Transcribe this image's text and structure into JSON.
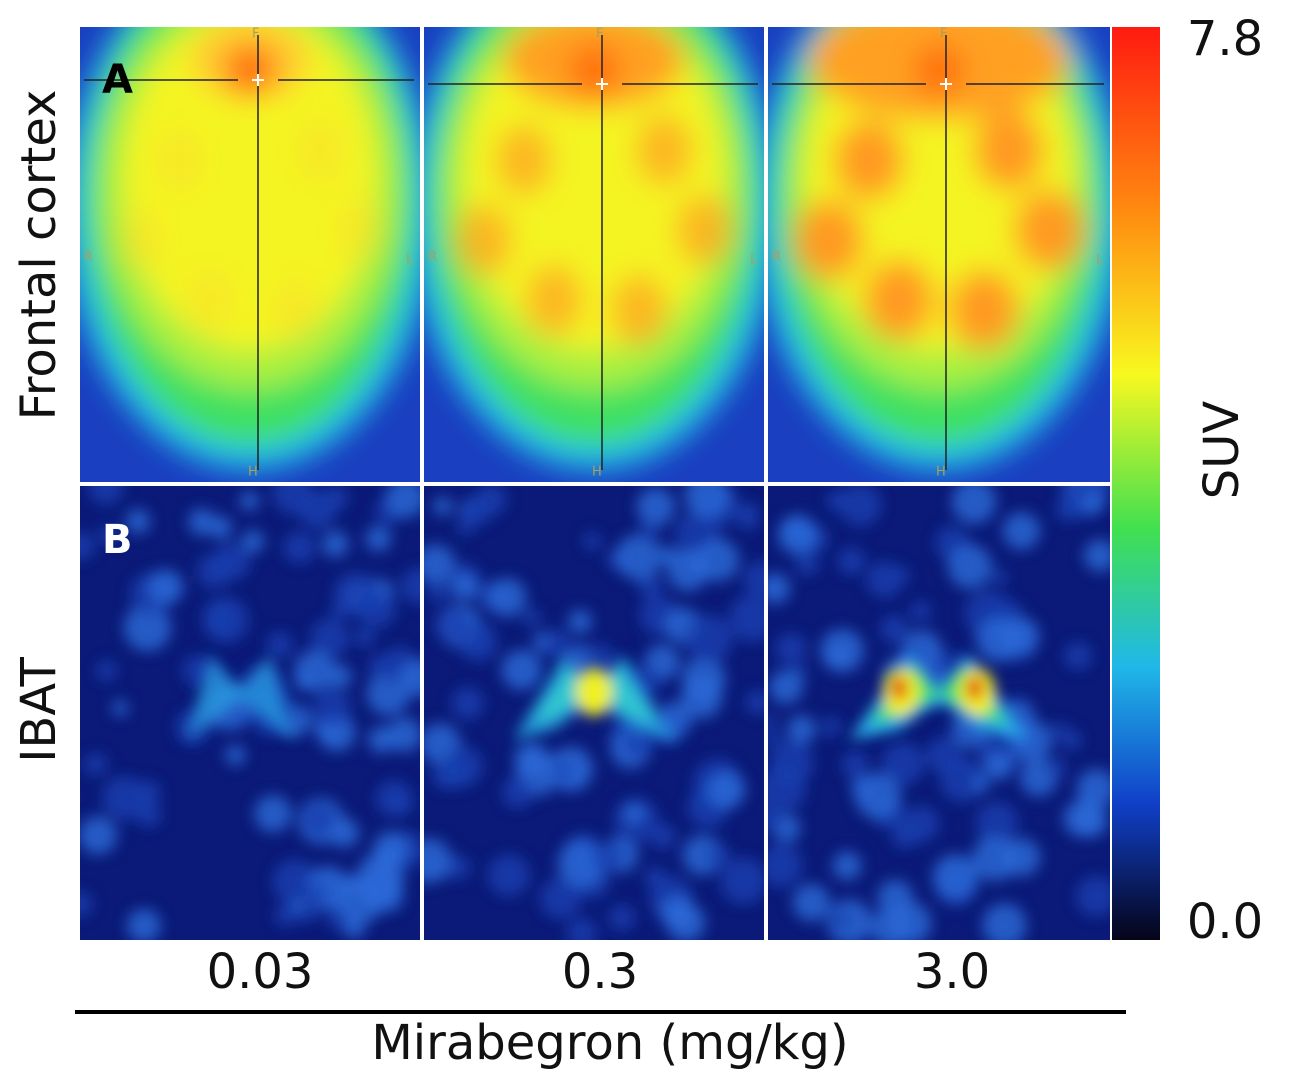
{
  "panels": {
    "A": "A",
    "B": "B"
  },
  "row_labels": [
    "Frontal cortex",
    "IBAT"
  ],
  "columns": [
    "0.03",
    "0.3",
    "3.0"
  ],
  "orientation": {
    "F": "F",
    "H": "H",
    "R": "R",
    "L": "L"
  },
  "colorbar": {
    "max": "7.8",
    "min": "0.0",
    "label": "SUV"
  },
  "x_axis_title": "Mirabegron (mg/kg)"
}
